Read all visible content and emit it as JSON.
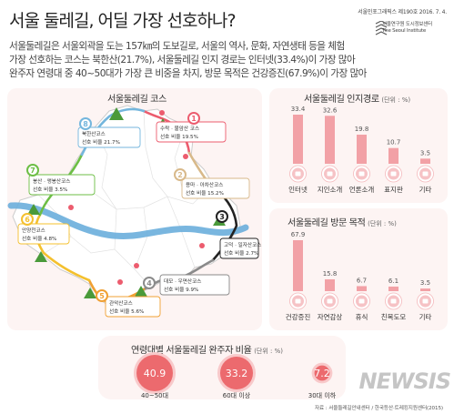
{
  "header": {
    "title": "서울 둘레길, 어딜 가장 선호하나?",
    "pubinfo": "서울인포그래픽스 제190호  2016. 7. 4.",
    "institute_ko": "서울연구원 도시정보센터",
    "institute_en": "The Seoul Institute"
  },
  "summary": [
    "서울둘레길은 서울외곽을 도는 157㎞의 도보길로, 서울의 역사, 문화, 자연생태 등을 체험",
    "가장 선호하는 코스는 북한산(21.7%), 서울둘레길 인지 경로는 인터넷(33.4%)이 가장 많아",
    "완주자 연령대 중 40~50대가 가장 큰 비중을 차지, 방문 목적은 건강증진(67.9%)이 가장 많아"
  ],
  "map_panel": {
    "title": "서울둘레길 코스",
    "courses": [
      {
        "num": "1",
        "name": "수락 · 불암산 코스",
        "pref_label": "선호 비율",
        "pref": "19.5%",
        "color": "#ec5c6e"
      },
      {
        "num": "2",
        "name": "용마 · 아차산코스",
        "pref_label": "선호 비율",
        "pref": "15.2%",
        "color": "#d8b98a"
      },
      {
        "num": "3",
        "name": "고덕 · 일자산코스",
        "pref_label": "선호 비율",
        "pref": "2.7%",
        "color": "#222222"
      },
      {
        "num": "4",
        "name": "대모 · 우면산코스",
        "pref_label": "선호 비율",
        "pref": "9.9%",
        "color": "#8a8a8a"
      },
      {
        "num": "5",
        "name": "관악산코스",
        "pref_label": "선호 비율",
        "pref": "5.6%",
        "color": "#f0a033"
      },
      {
        "num": "6",
        "name": "안양천코스",
        "pref_label": "선호 비율",
        "pref": "4.8%",
        "color": "#f4c02e"
      },
      {
        "num": "7",
        "name": "봉산 · 앵봉산코스",
        "pref_label": "선호 비율",
        "pref": "3.5%",
        "color": "#6dbe45"
      },
      {
        "num": "8",
        "name": "북한산코스",
        "pref_label": "선호 비율",
        "pref": "21.7%",
        "color": "#74b6dd"
      }
    ]
  },
  "chart_data": [
    {
      "type": "bar",
      "title": "서울둘레길 인지경로",
      "unit": "(단위 : %)",
      "categories": [
        "인터넷",
        "지인소개",
        "언론소개",
        "표지판",
        "기타"
      ],
      "values": [
        33.4,
        32.6,
        19.8,
        10.7,
        3.5
      ],
      "ylim": [
        0,
        33.4
      ],
      "grid": false,
      "color": "#f2a1a6"
    },
    {
      "type": "bar",
      "title": "서울둘레길 방문 목적",
      "unit": "(단위 : %)",
      "categories": [
        "건강증진",
        "자연감상",
        "휴식",
        "친목도모",
        "기타"
      ],
      "values": [
        67.9,
        15.8,
        6.7,
        6.1,
        3.5
      ],
      "ylim": [
        0,
        67.9
      ],
      "grid": false,
      "color": "#f2a1a6"
    },
    {
      "type": "bubble",
      "title": "연령대별 서울둘레길 완주자 비율",
      "unit": "(단위 : %)",
      "categories": [
        "40~50대",
        "60대 이상",
        "30대 이하"
      ],
      "values": [
        40.9,
        33.2,
        7.2
      ],
      "color": "#ec6a6e"
    }
  ],
  "footer": {
    "source": "자료 : 서울둘레길안내센터 / 한국등산·트레킹지원센터(2015)",
    "watermark": "NEWSIS"
  }
}
